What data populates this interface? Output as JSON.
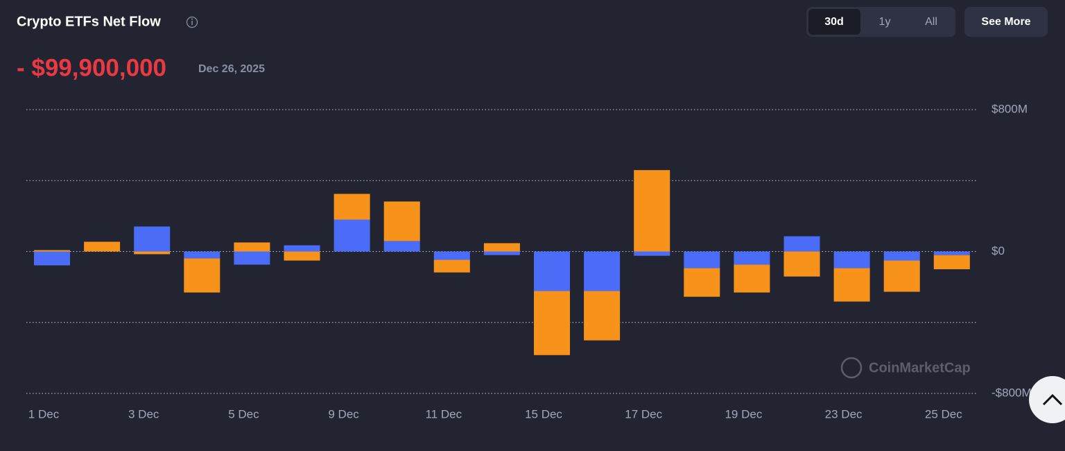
{
  "header": {
    "headline": "- $99,900,000",
    "date": "Dec 26, 2025",
    "ranges": [
      "30d",
      "1y",
      "All"
    ],
    "see_more": "See More"
  },
  "chart_data": {
    "type": "bar",
    "stacked": true,
    "title": "Crypto ETFs Net Flow",
    "watermark": "CoinMarketCap",
    "categories": [
      "1 Dec",
      null,
      "3 Dec",
      null,
      "5 Dec",
      null,
      "9 Dec",
      null,
      "11 Dec",
      null,
      "15 Dec",
      null,
      "17 Dec",
      null,
      "19 Dec",
      null,
      "23 Dec",
      null,
      "25 Dec"
    ],
    "series": [
      {
        "color": "#4a6cf7",
        "values": [
          -78,
          0,
          141,
          -39,
          -74,
          35,
          180,
          59,
          -47,
          -20,
          -223,
          -223,
          -24,
          -94,
          -74,
          86,
          -94,
          -51,
          -20.3
        ]
      },
      {
        "color": "#f7931a",
        "values": [
          8,
          55,
          -15,
          -192,
          51,
          -51,
          145,
          223,
          -71,
          47,
          -361,
          -278,
          459,
          -161,
          -157,
          -141,
          -188,
          -176,
          -79.6
        ]
      }
    ],
    "ylim": [
      -800,
      800
    ],
    "yticks": [
      {
        "value": 800,
        "label": "$800M"
      },
      {
        "value": 400,
        "label": null
      },
      {
        "value": 0,
        "label": "$0"
      },
      {
        "value": -400,
        "label": null
      },
      {
        "value": -800,
        "label": "-$800M"
      }
    ],
    "grid": true
  }
}
